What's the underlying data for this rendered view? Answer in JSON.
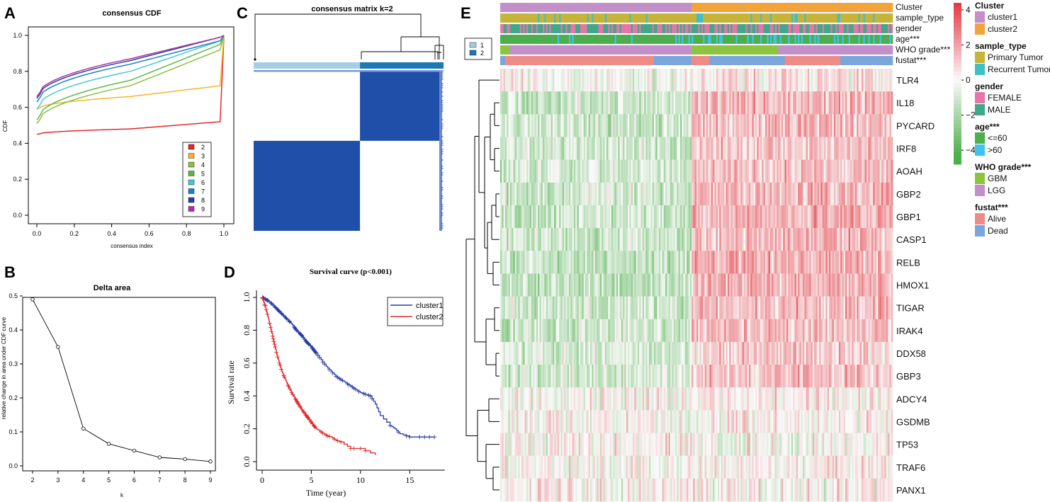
{
  "panels": {
    "A": "A",
    "B": "B",
    "C": "C",
    "D": "D",
    "E": "E"
  },
  "chart_data": [
    {
      "id": "A",
      "type": "line",
      "title": "consensus CDF",
      "xlabel": "consensus index",
      "ylabel": "CDF",
      "xlim": [
        0,
        1
      ],
      "ylim": [
        0,
        1
      ],
      "xticks": [
        "0.0",
        "0.2",
        "0.4",
        "0.6",
        "0.8",
        "1.0"
      ],
      "yticks": [
        "0.0",
        "0.2",
        "0.4",
        "0.6",
        "0.8",
        "1.0"
      ],
      "series": [
        {
          "name": "2",
          "color": "#e3282a",
          "start": 0.45,
          "mid": 0.48,
          "end": 0.52
        },
        {
          "name": "3",
          "color": "#f5b52c",
          "start": 0.59,
          "mid": 0.66,
          "end": 0.72
        },
        {
          "name": "4",
          "color": "#8dc03f",
          "start": 0.51,
          "mid": 0.72,
          "end": 0.92
        },
        {
          "name": "5",
          "color": "#5aba4a",
          "start": 0.53,
          "mid": 0.75,
          "end": 0.95
        },
        {
          "name": "6",
          "color": "#45c7d4",
          "start": 0.59,
          "mid": 0.8,
          "end": 0.97
        },
        {
          "name": "7",
          "color": "#1e7fc4",
          "start": 0.63,
          "mid": 0.84,
          "end": 0.97
        },
        {
          "name": "8",
          "color": "#2a3fa0",
          "start": 0.65,
          "mid": 0.86,
          "end": 0.99
        },
        {
          "name": "9",
          "color": "#b32fa3",
          "start": 0.66,
          "mid": 0.87,
          "end": 0.99
        }
      ]
    },
    {
      "id": "B",
      "type": "line",
      "title": "Delta area",
      "xlabel": "k",
      "ylabel": "relative change in area under CDF curve",
      "x": [
        2,
        3,
        4,
        5,
        6,
        7,
        8,
        9
      ],
      "y": [
        0.49,
        0.35,
        0.11,
        0.065,
        0.045,
        0.025,
        0.02,
        0.013
      ],
      "xlim": [
        2,
        9
      ],
      "ylim": [
        0,
        0.5
      ],
      "xticks": [
        "2",
        "3",
        "4",
        "5",
        "6",
        "7",
        "8",
        "9"
      ],
      "yticks": [
        "0.0",
        "0.1",
        "0.2",
        "0.3",
        "0.4",
        "0.5"
      ]
    },
    {
      "id": "C",
      "type": "heatmap",
      "title": "consensus matrix k=2",
      "clusters": [
        "1",
        "2"
      ],
      "cluster_colors": [
        "#a6cee3",
        "#1f78b4"
      ],
      "fill_color": "#1f4fa8",
      "cluster1_fraction": 0.56
    },
    {
      "id": "D",
      "type": "line",
      "title": "Survival curve (p<0.001)",
      "xlabel": "Time (year)",
      "ylabel": "Survival rate",
      "xlim": [
        0,
        18
      ],
      "ylim": [
        0,
        1
      ],
      "xticks": [
        "0",
        "5",
        "10",
        "15"
      ],
      "yticks": [
        "0.0",
        "0.2",
        "0.4",
        "0.6",
        "0.8",
        "1.0"
      ],
      "series": [
        {
          "name": "cluster1",
          "color": "#2a3fa0",
          "x": [
            0,
            0.3,
            0.6,
            1,
            1.5,
            2,
            2.5,
            3,
            3.5,
            4,
            4.5,
            5,
            5.5,
            6,
            6.5,
            7,
            7.5,
            8,
            8.5,
            9,
            9.5,
            10,
            10.5,
            11,
            11.5,
            12,
            13,
            13.5,
            14,
            15,
            16,
            17.5
          ],
          "y": [
            1,
            0.99,
            0.98,
            0.96,
            0.93,
            0.9,
            0.87,
            0.84,
            0.8,
            0.77,
            0.73,
            0.7,
            0.66,
            0.62,
            0.58,
            0.55,
            0.52,
            0.5,
            0.48,
            0.46,
            0.44,
            0.42,
            0.41,
            0.4,
            0.35,
            0.28,
            0.22,
            0.2,
            0.17,
            0.15,
            0.15,
            0.15
          ]
        },
        {
          "name": "cluster2",
          "color": "#e3282a",
          "x": [
            0,
            0.3,
            0.6,
            1,
            1.5,
            2,
            2.5,
            3,
            3.5,
            4,
            4.5,
            5,
            5.5,
            6,
            6.5,
            7,
            7.5,
            8,
            9,
            10,
            11.5
          ],
          "y": [
            1,
            0.95,
            0.88,
            0.78,
            0.65,
            0.55,
            0.48,
            0.42,
            0.37,
            0.32,
            0.28,
            0.24,
            0.2,
            0.18,
            0.16,
            0.15,
            0.13,
            0.12,
            0.08,
            0.08,
            0.04
          ]
        }
      ]
    },
    {
      "id": "E",
      "type": "heatmap",
      "genes": [
        "TLR4",
        "IL18",
        "PYCARD",
        "IRF8",
        "AOAH",
        "GBP2",
        "GBP1",
        "CASP1",
        "RELB",
        "HMOX1",
        "TIGAR",
        "IRAK4",
        "DDX58",
        "GBP3",
        "ADCY4",
        "GSDMB",
        "TP53",
        "TRAF6",
        "PANX1"
      ],
      "cluster2_bias": [
        0.3,
        0.9,
        0.9,
        0.75,
        0.8,
        0.85,
        0.9,
        0.9,
        1.0,
        1.0,
        0.9,
        0.85,
        0.7,
        0.7,
        0.15,
        0.05,
        0.0,
        0.1,
        0.05
      ],
      "annotation_rows": [
        "Cluster",
        "sample_type",
        "gender",
        "age***",
        "WHO grade***",
        "fustat***"
      ],
      "scale_ticks": [
        "4",
        "2",
        "0",
        "−2",
        "−4"
      ],
      "inset_legend": [
        "1",
        "2"
      ],
      "legend": [
        {
          "title": "Cluster",
          "items": [
            {
              "label": "cluster1",
              "color": "#c28fca"
            },
            {
              "label": "cluster2",
              "color": "#f3a33b"
            }
          ]
        },
        {
          "title": "sample_type",
          "items": [
            {
              "label": "Primary Tumor",
              "color": "#c8b33a"
            },
            {
              "label": "Recurrent Tumor",
              "color": "#3fc0c6"
            }
          ]
        },
        {
          "title": "gender",
          "items": [
            {
              "label": "FEMALE",
              "color": "#e874a9"
            },
            {
              "label": "MALE",
              "color": "#3fa88a"
            }
          ]
        },
        {
          "title": "age***",
          "items": [
            {
              "label": "<=60",
              "color": "#4cae4c"
            },
            {
              "label": ">60",
              "color": "#3cc4ef"
            }
          ]
        },
        {
          "title": "WHO grade***",
          "items": [
            {
              "label": "GBM",
              "color": "#8cc43f"
            },
            {
              "label": "LGG",
              "color": "#c28fca"
            }
          ]
        },
        {
          "title": "fustat***",
          "items": [
            {
              "label": "Alive",
              "color": "#ef8b86"
            },
            {
              "label": "Dead",
              "color": "#7aa6dc"
            }
          ]
        }
      ]
    }
  ]
}
